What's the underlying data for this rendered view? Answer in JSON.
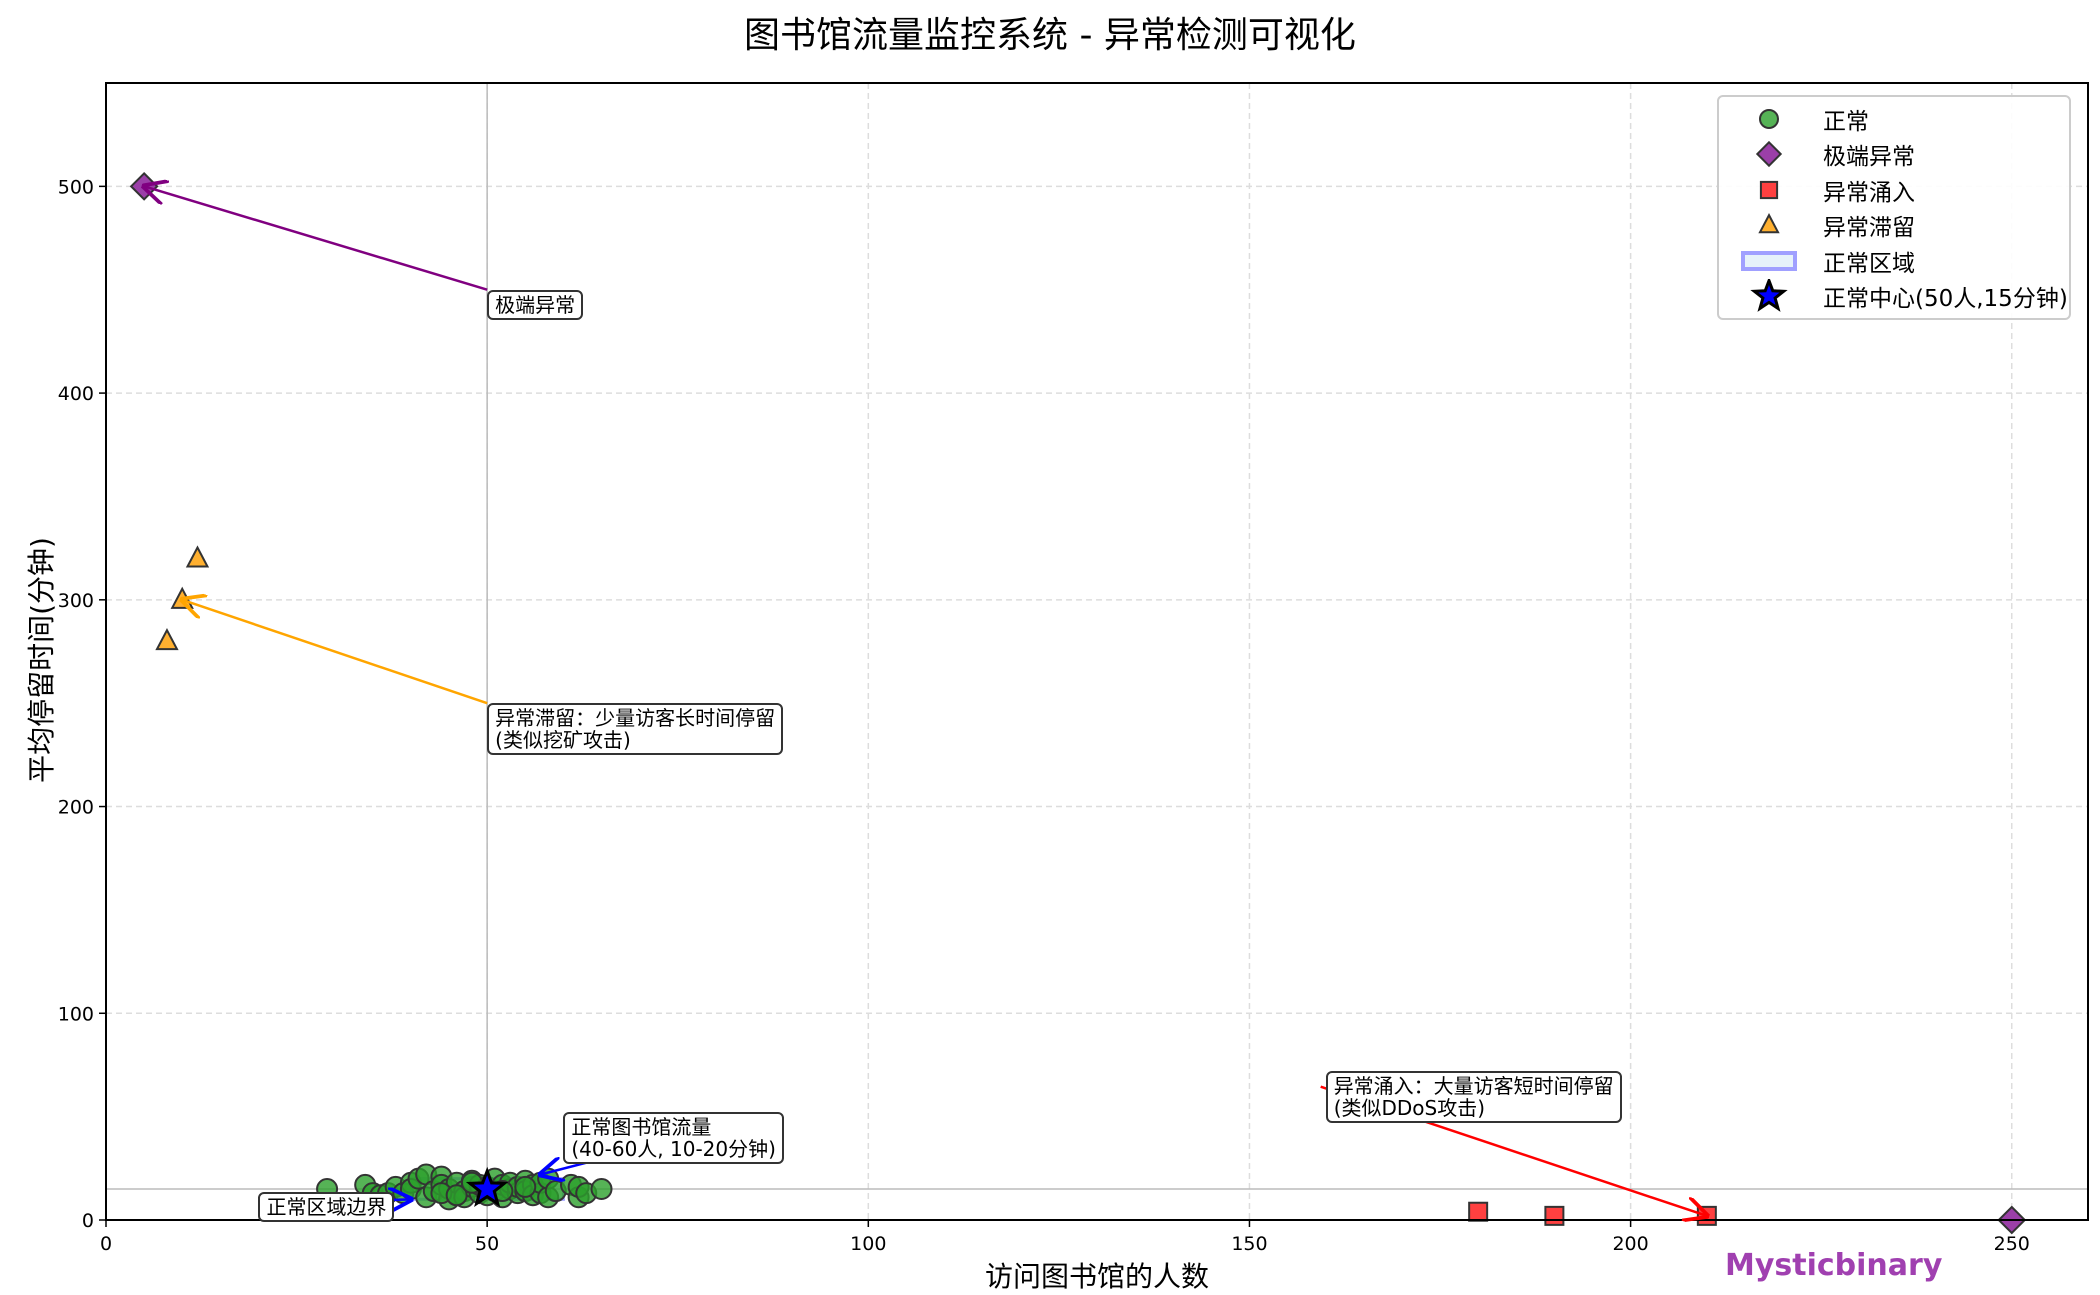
{
  "chart_data": {
    "type": "scatter",
    "title": "图书馆流量监控系统 - 异常检测可视化",
    "xlabel": "访问图书馆的人数",
    "ylabel": "平均停留时间(分钟)",
    "xlim": [
      0,
      260
    ],
    "ylim": [
      0,
      550
    ],
    "xticks": [
      0,
      50,
      100,
      150,
      200,
      250
    ],
    "yticks": [
      0,
      100,
      200,
      300,
      400,
      500
    ],
    "grid": true,
    "legend_position": "top-right",
    "series": [
      {
        "name": "正常",
        "marker": "circle",
        "color": "#2ca02c",
        "x": [
          29,
          34,
          35,
          36,
          37,
          38,
          39,
          40,
          40,
          41,
          42,
          42,
          43,
          44,
          44,
          45,
          45,
          46,
          46,
          47,
          47,
          48,
          48,
          49,
          49,
          50,
          50,
          51,
          51,
          52,
          52,
          53,
          53,
          54,
          54,
          55,
          55,
          56,
          56,
          57,
          57,
          58,
          58,
          59,
          61,
          62,
          62,
          63,
          65,
          44,
          46,
          48,
          52,
          55
        ],
        "y": [
          15,
          17,
          13,
          12,
          13,
          16,
          13,
          18,
          15,
          20,
          11,
          22,
          14,
          21,
          17,
          10,
          15,
          12,
          18,
          14,
          11,
          16,
          19,
          13,
          17,
          12,
          16,
          20,
          14,
          11,
          17,
          15,
          18,
          13,
          16,
          19,
          14,
          17,
          12,
          13,
          18,
          11,
          20,
          14,
          17,
          11,
          16,
          13,
          15,
          13,
          12,
          18,
          14,
          16
        ]
      },
      {
        "name": "极端异常",
        "marker": "diamond",
        "color": "#9b3fa8",
        "x": [
          5,
          250
        ],
        "y": [
          500,
          0
        ]
      },
      {
        "name": "异常涌入",
        "marker": "square",
        "color": "#ff4040",
        "x": [
          180,
          190,
          210
        ],
        "y": [
          4,
          2,
          2
        ]
      },
      {
        "name": "异常滞留",
        "marker": "triangle",
        "color": "#ffb030",
        "x": [
          8,
          10,
          12
        ],
        "y": [
          280,
          300,
          320
        ]
      },
      {
        "name": "正常区域",
        "marker": "rect",
        "color": "#a0a0ff",
        "x_range": [
          40,
          60
        ],
        "y_range": [
          10,
          20
        ]
      },
      {
        "name": "正常中心(50人,15分钟)",
        "marker": "star",
        "color": "#0000ff",
        "x": [
          50
        ],
        "y": [
          15
        ]
      }
    ],
    "reference_lines": {
      "x": 50,
      "y": 15
    },
    "annotations": [
      {
        "text": "极端异常",
        "x": 50,
        "y": 450,
        "target": [
          5,
          500
        ],
        "color": "#800080"
      },
      {
        "text": "异常滞留：少量访客长时间停留\n(类似挖矿攻击)",
        "x": 50,
        "y": 250,
        "target": [
          10,
          300
        ],
        "color": "#ffa500"
      },
      {
        "text": "异常涌入：大量访客短时间停留\n(类似DDoS攻击)",
        "x": 160,
        "y": 50,
        "target": [
          210,
          2
        ],
        "color": "#ff0000"
      },
      {
        "text": "正常图书馆流量\n(40-60人, 10-20分钟)",
        "x": 60,
        "y": 30,
        "target": [
          57,
          22
        ],
        "color": "#0000ff"
      },
      {
        "text": "正常区域边界",
        "x": 20,
        "y": 3,
        "target": [
          40,
          10
        ],
        "color": "#0000ff"
      }
    ]
  },
  "watermark": "Mysticbinary"
}
